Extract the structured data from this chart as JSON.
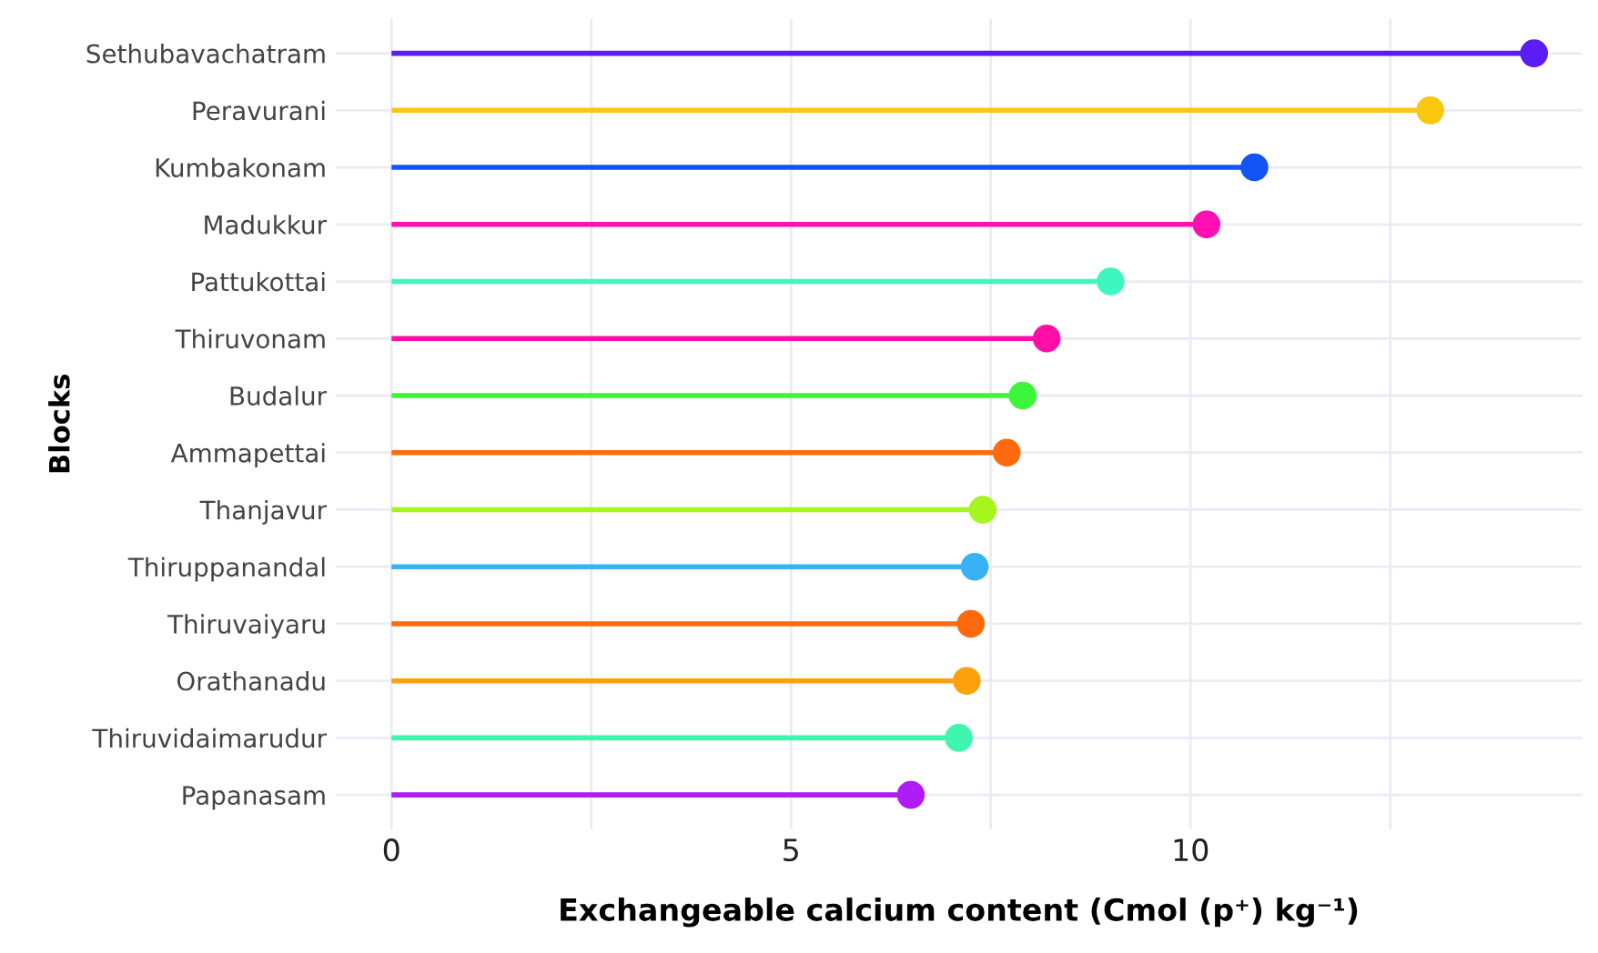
{
  "chart_data": {
    "type": "lollipop",
    "orientation": "horizontal",
    "xlabel": "Exchangeable calcium content (Cmol (p⁺) kg⁻¹)",
    "ylabel": "Blocks",
    "categories": [
      "Sethubavachatram",
      "Peravurani",
      "Kumbakonam",
      "Madukkur",
      "Pattukottai",
      "Thiruvonam",
      "Budalur",
      "Ammapettai",
      "Thanjavur",
      "Thiruppanandal",
      "Thiruvaiyaru",
      "Orathanadu",
      "Thiruvidaimarudur",
      "Papanasam"
    ],
    "values": [
      14.3,
      13.0,
      10.8,
      10.2,
      9.0,
      8.2,
      7.9,
      7.7,
      7.4,
      7.3,
      7.25,
      7.2,
      7.1,
      6.5
    ],
    "colors": [
      "#5b1cf5",
      "#f9c80e",
      "#1254f5",
      "#ff0fb4",
      "#3ff5c0",
      "#ff0fa8",
      "#3cf53c",
      "#ff6a0d",
      "#a6f51c",
      "#38b2f5",
      "#ff6a0d",
      "#ffa10d",
      "#3ff5b0",
      "#b01cf5"
    ],
    "xlim": [
      -0.7,
      14.9
    ],
    "xticks": [
      0,
      {
        "value": 2.5,
        "label": null
      },
      5,
      {
        "value": 7.5,
        "label": null
      },
      10,
      {
        "value": 12.5,
        "label": null
      }
    ],
    "grid": true,
    "marker": "circle"
  }
}
